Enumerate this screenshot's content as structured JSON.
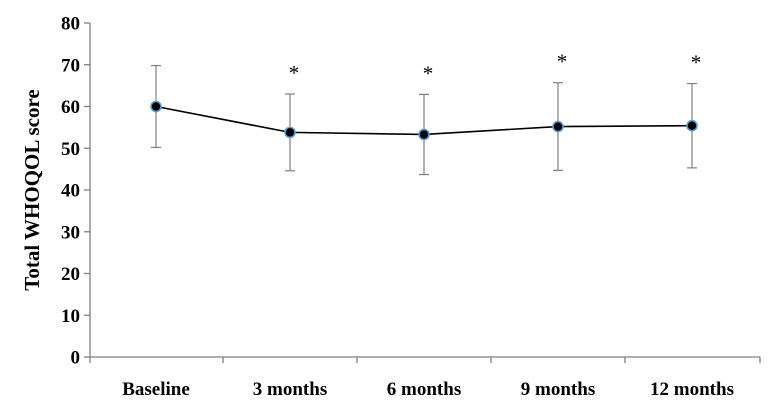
{
  "chart_data": {
    "type": "line",
    "title": "",
    "xlabel": "",
    "ylabel": "Total WHOQOL score",
    "categories": [
      "Baseline",
      "3 months",
      "6 months",
      "9 months",
      "12 months"
    ],
    "series": [
      {
        "values": [
          60.0,
          53.8,
          53.3,
          55.2,
          55.4
        ],
        "error": [
          9.8,
          9.2,
          9.6,
          10.5,
          10.1
        ],
        "significant": [
          "",
          "*",
          "*",
          "*",
          "*"
        ]
      }
    ],
    "ylim": [
      0,
      80
    ],
    "yticks": [
      0,
      10,
      20,
      30,
      40,
      50,
      60,
      70,
      80
    ],
    "grid": false,
    "legend": "none",
    "colors": {
      "line": "#000000",
      "marker_fill": "#000000",
      "marker_edge": "#5b9bd5",
      "errorbar": "#808080",
      "axis": "#808080"
    }
  }
}
